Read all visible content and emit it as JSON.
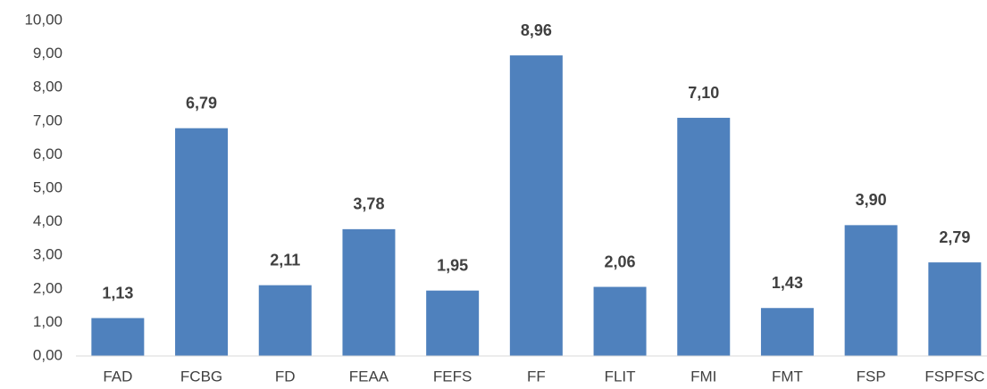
{
  "chart_data": {
    "type": "bar",
    "categories": [
      "FAD",
      "FCBG",
      "FD",
      "FEAA",
      "FEFS",
      "FF",
      "FLIT",
      "FMI",
      "FMT",
      "FSP",
      "FSPFSC"
    ],
    "values": [
      1.13,
      6.79,
      2.11,
      3.78,
      1.95,
      8.96,
      2.06,
      7.1,
      1.43,
      3.9,
      2.79
    ],
    "value_labels": [
      "1,13",
      "6,79",
      "2,11",
      "3,78",
      "1,95",
      "8,96",
      "2,06",
      "7,10",
      "1,43",
      "3,90",
      "2,79"
    ],
    "color": "#4f81bd",
    "ylim": [
      0,
      10
    ],
    "yticks": [
      {
        "value": 0,
        "label": "0,00"
      },
      {
        "value": 1,
        "label": "1,00"
      },
      {
        "value": 2,
        "label": "2,00"
      },
      {
        "value": 3,
        "label": "3,00"
      },
      {
        "value": 4,
        "label": "4,00"
      },
      {
        "value": 5,
        "label": "5,00"
      },
      {
        "value": 6,
        "label": "6,00"
      },
      {
        "value": 7,
        "label": "7,00"
      },
      {
        "value": 8,
        "label": "8,00"
      },
      {
        "value": 9,
        "label": "9,00"
      },
      {
        "value": 10,
        "label": "10,00"
      }
    ],
    "grid": false
  }
}
